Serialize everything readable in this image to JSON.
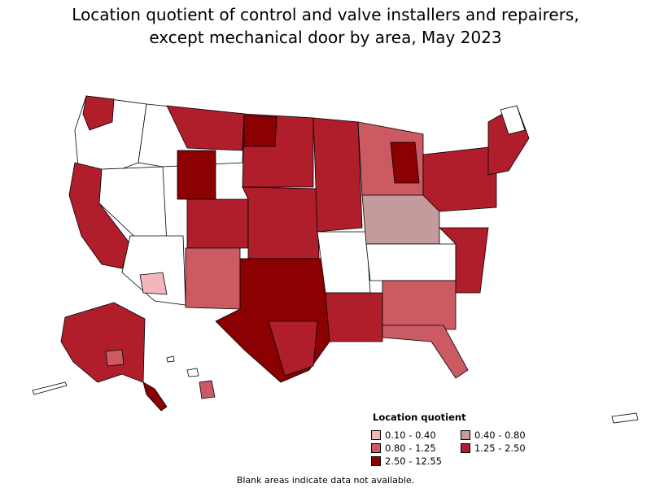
{
  "title_line1": "Location quotient of control and valve installers and repairers,",
  "title_line2": "except mechanical door by area, May 2023",
  "legend": {
    "title": "Location quotient",
    "items": [
      {
        "label": "0.10 - 0.40",
        "color": "#f4b6bd"
      },
      {
        "label": "0.40 - 0.80",
        "color": "#c49a9c"
      },
      {
        "label": "0.80 - 1.25",
        "color": "#cc5a63"
      },
      {
        "label": "1.25 - 2.50",
        "color": "#b01e2c"
      },
      {
        "label": "2.50 - 12.55",
        "color": "#8b0000"
      }
    ]
  },
  "footnote": "Blank areas indicate data not available.",
  "colors": {
    "very_low": "#f4b6bd",
    "low": "#c49a9c",
    "mid": "#cc5a63",
    "high": "#b01e2c",
    "very_high": "#8b0000",
    "no_data": "#ffffff",
    "border": "#000000"
  }
}
